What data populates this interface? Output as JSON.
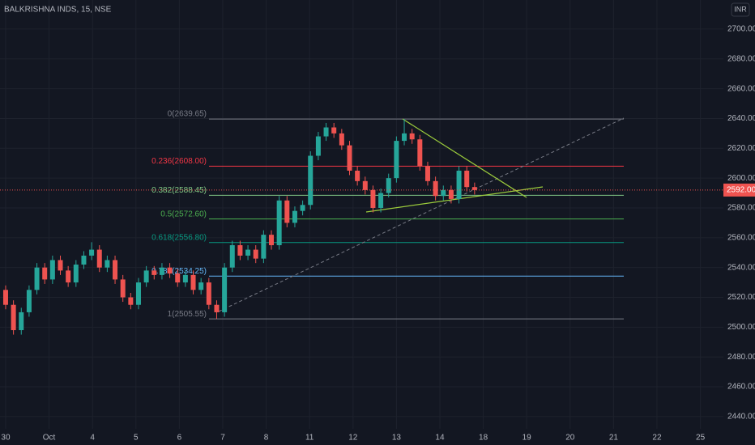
{
  "chart_data": {
    "type": "candlestick",
    "title": "BALKRISHNA INDS, 15, NSE",
    "currency": "INR",
    "xlim": [
      -0.13,
      16.53
    ],
    "ylim": [
      2431.8,
      2719.5
    ],
    "xticks": [
      {
        "value": 0,
        "label": "30"
      },
      {
        "value": 1,
        "label": "Oct"
      },
      {
        "value": 2,
        "label": "4"
      },
      {
        "value": 3,
        "label": "5"
      },
      {
        "value": 4,
        "label": "6"
      },
      {
        "value": 5,
        "label": "7"
      },
      {
        "value": 6,
        "label": "8"
      },
      {
        "value": 7,
        "label": "11"
      },
      {
        "value": 8,
        "label": "12"
      },
      {
        "value": 9,
        "label": "13"
      },
      {
        "value": 10,
        "label": "14"
      },
      {
        "value": 11,
        "label": "18"
      },
      {
        "value": 12,
        "label": "19"
      },
      {
        "value": 13,
        "label": "20"
      },
      {
        "value": 14,
        "label": "21"
      },
      {
        "value": 15,
        "label": "22"
      },
      {
        "value": 16,
        "label": "25"
      }
    ],
    "yticks": [
      {
        "value": 2440,
        "label": "2440.00"
      },
      {
        "value": 2460,
        "label": "2460.00"
      },
      {
        "value": 2480,
        "label": "2480.00"
      },
      {
        "value": 2500,
        "label": "2500.00"
      },
      {
        "value": 2520,
        "label": "2520.00"
      },
      {
        "value": 2540,
        "label": "2540.00"
      },
      {
        "value": 2560,
        "label": "2560.00"
      },
      {
        "value": 2580,
        "label": "2580.00"
      },
      {
        "value": 2600,
        "label": "2600.00"
      },
      {
        "value": 2620,
        "label": "2620.00"
      },
      {
        "value": 2640,
        "label": "2640.00"
      },
      {
        "value": 2660,
        "label": "2660.00"
      },
      {
        "value": 2680,
        "label": "2680.00"
      },
      {
        "value": 2700,
        "label": "2700.00"
      }
    ],
    "grid": true,
    "up_color": "#26a69a",
    "down_color": "#ef5350",
    "x": [
      0,
      0.18,
      0.36,
      0.54,
      0.72,
      0.9,
      1.08,
      1.26,
      1.44,
      1.62,
      1.8,
      1.98,
      2.16,
      2.34,
      2.52,
      2.7,
      2.88,
      3.06,
      3.24,
      3.42,
      3.6,
      3.78,
      3.96,
      4.14,
      4.32,
      4.5,
      4.68,
      4.86,
      5.04,
      5.22,
      5.4,
      5.58,
      5.76,
      5.94,
      6.12,
      6.3,
      6.48,
      6.66,
      6.84,
      7.02,
      7.2,
      7.38,
      7.56,
      7.74,
      7.92,
      8.1,
      8.28,
      8.46,
      8.64,
      8.82,
      9,
      9.18,
      9.36,
      9.54,
      9.72,
      9.9,
      10.08,
      10.26,
      10.44,
      10.62,
      10.8
    ],
    "open": [
      2525,
      2515,
      2498,
      2510,
      2525,
      2540,
      2532,
      2545,
      2538,
      2530,
      2542,
      2548,
      2552,
      2540,
      2545,
      2532,
      2520,
      2515,
      2530,
      2538,
      2535,
      2540,
      2536,
      2530,
      2535,
      2525,
      2530,
      2515,
      2510,
      2540,
      2555,
      2548,
      2552,
      2546,
      2562,
      2555,
      2585,
      2570,
      2578,
      2582,
      2615,
      2628,
      2634,
      2630,
      2622,
      2605,
      2598,
      2592,
      2580,
      2590,
      2600,
      2625,
      2630,
      2626,
      2608,
      2598,
      2588,
      2592,
      2586,
      2605,
      2594
    ],
    "high": [
      2528,
      2518,
      2513,
      2528,
      2543,
      2543,
      2548,
      2548,
      2541,
      2545,
      2551,
      2557,
      2555,
      2548,
      2548,
      2535,
      2523,
      2533,
      2541,
      2541,
      2543,
      2543,
      2539,
      2538,
      2538,
      2533,
      2533,
      2518,
      2543,
      2558,
      2558,
      2555,
      2555,
      2565,
      2565,
      2588,
      2588,
      2581,
      2585,
      2618,
      2631,
      2637,
      2637,
      2633,
      2625,
      2608,
      2601,
      2595,
      2593,
      2603,
      2628,
      2639.65,
      2633,
      2629,
      2611,
      2601,
      2595,
      2595,
      2608,
      2608,
      2597
    ],
    "low": [
      2512,
      2495,
      2495,
      2507,
      2522,
      2529,
      2529,
      2535,
      2527,
      2527,
      2539,
      2545,
      2537,
      2537,
      2529,
      2517,
      2512,
      2512,
      2527,
      2532,
      2532,
      2533,
      2527,
      2527,
      2522,
      2522,
      2512,
      2505.55,
      2507,
      2537,
      2545,
      2545,
      2543,
      2543,
      2552,
      2552,
      2567,
      2567,
      2575,
      2579,
      2612,
      2625,
      2627,
      2619,
      2602,
      2595,
      2589,
      2577,
      2577,
      2587,
      2597,
      2622,
      2623,
      2605,
      2595,
      2585,
      2585,
      2583,
      2583,
      2591,
      2589
    ],
    "close": [
      2515,
      2498,
      2510,
      2525,
      2540,
      2532,
      2545,
      2538,
      2530,
      2542,
      2548,
      2552,
      2540,
      2545,
      2532,
      2520,
      2515,
      2530,
      2538,
      2535,
      2540,
      2536,
      2530,
      2535,
      2525,
      2530,
      2515,
      2510,
      2540,
      2555,
      2548,
      2552,
      2546,
      2562,
      2555,
      2585,
      2570,
      2578,
      2582,
      2615,
      2628,
      2634,
      2630,
      2622,
      2605,
      2598,
      2592,
      2580,
      2590,
      2600,
      2625,
      2630,
      2626,
      2608,
      2598,
      2588,
      2592,
      2586,
      2605,
      2594,
      2592
    ],
    "fib_levels": [
      {
        "label": "0(2639.65)",
        "value": 2639.65,
        "color": "#787b86"
      },
      {
        "label": "0.236(2608.00)",
        "value": 2608.0,
        "color": "#f23645"
      },
      {
        "label": "0.382(2588.45)",
        "value": 2588.45,
        "color": "#81c784"
      },
      {
        "label": "0.5(2572.60)",
        "value": 2572.6,
        "color": "#4caf50"
      },
      {
        "label": "0.618(2556.80)",
        "value": 2556.8,
        "color": "#089981"
      },
      {
        "label": "0.786(2534.25)",
        "value": 2534.25,
        "color": "#64b5f6"
      },
      {
        "label": "1(2505.55)",
        "value": 2505.55,
        "color": "#787b86"
      }
    ],
    "last_price": {
      "value": 2592,
      "label": "2592.00"
    }
  }
}
